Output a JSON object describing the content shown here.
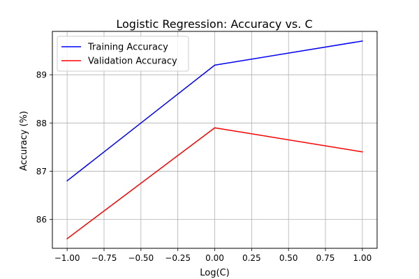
{
  "chart_data": {
    "type": "line",
    "title": "Logistic Regression: Accuracy vs. C",
    "xlabel": "Log(C)",
    "ylabel": "Accuracy (%)",
    "x": [
      -1.0,
      0.0,
      1.0
    ],
    "xlim": [
      -1.1,
      1.1
    ],
    "ylim": [
      85.4,
      89.9
    ],
    "xticks": [
      -1.0,
      -0.75,
      -0.5,
      -0.25,
      0.0,
      0.25,
      0.5,
      0.75,
      1.0
    ],
    "xtick_labels": [
      "−1.00",
      "−0.75",
      "−0.50",
      "−0.25",
      "0.00",
      "0.25",
      "0.50",
      "0.75",
      "1.00"
    ],
    "yticks": [
      86,
      87,
      88,
      89
    ],
    "ytick_labels": [
      "86",
      "87",
      "88",
      "89"
    ],
    "grid": true,
    "legend_position": "top-left",
    "series": [
      {
        "name": "Training Accuracy",
        "color": "#0000ff",
        "values": [
          86.8,
          89.2,
          89.7
        ]
      },
      {
        "name": "Validation Accuracy",
        "color": "#ff0000",
        "values": [
          85.6,
          87.9,
          87.4
        ]
      }
    ]
  }
}
